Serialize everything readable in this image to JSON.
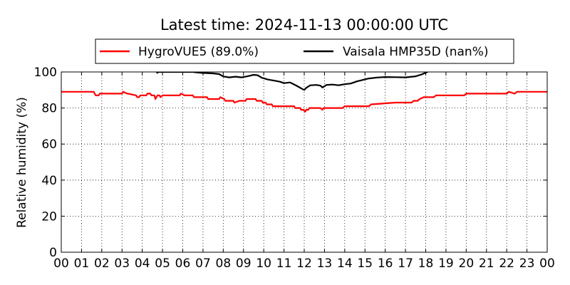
{
  "chart_data": {
    "type": "line",
    "title": "Latest time: 2024-11-13 00:00:00 UTC",
    "xlabel": "",
    "ylabel": "Relative humidity (%)",
    "xlim": [
      0,
      24
    ],
    "ylim": [
      0,
      100
    ],
    "yticks": [
      0,
      20,
      40,
      60,
      80,
      100
    ],
    "xtick_labels": [
      "00",
      "01",
      "02",
      "03",
      "04",
      "05",
      "06",
      "07",
      "08",
      "09",
      "10",
      "11",
      "12",
      "13",
      "14",
      "15",
      "16",
      "17",
      "18",
      "19",
      "20",
      "21",
      "22",
      "23",
      "00"
    ],
    "grid": true,
    "legend_position": "top-center",
    "series": [
      {
        "name": "HygroVUE5 (89.0%)",
        "color": "#ff0000",
        "x": [
          0,
          1.6,
          1.7,
          1.85,
          1.9,
          2.5,
          3.0,
          3.05,
          3.25,
          3.3,
          3.7,
          3.75,
          3.85,
          3.9,
          4.2,
          4.25,
          4.4,
          4.45,
          4.6,
          4.65,
          4.75,
          4.85,
          4.9,
          5.0,
          5.5,
          5.85,
          5.9,
          6.1,
          6.15,
          6.5,
          6.55,
          6.8,
          6.85,
          7.2,
          7.25,
          7.8,
          7.85,
          8.05,
          8.1,
          8.5,
          8.55,
          8.8,
          8.85,
          9.1,
          9.15,
          9.6,
          9.65,
          9.9,
          9.95,
          10.1,
          10.15,
          10.4,
          10.45,
          10.7,
          10.75,
          11.0,
          11.1,
          11.5,
          11.55,
          11.8,
          11.85,
          11.95,
          12.05,
          12.1,
          12.2,
          12.25,
          12.6,
          12.8,
          12.9,
          12.95,
          13.0,
          13.4,
          13.5,
          13.9,
          14.0,
          14.8,
          14.9,
          15.2,
          15.3,
          16.5,
          17.0,
          17.3,
          17.4,
          17.6,
          17.7,
          17.9,
          18.4,
          18.5,
          19.3,
          19.4,
          19.9,
          20.0,
          21.5,
          22.0,
          22.1,
          22.4,
          22.5,
          23.0,
          23.5,
          24
        ],
        "y": [
          89,
          89,
          87,
          87,
          88,
          88,
          88,
          89,
          88,
          88,
          87,
          86,
          86,
          87,
          87,
          88,
          88,
          87,
          87,
          85,
          87,
          87,
          86,
          87,
          87,
          87,
          88,
          87,
          87,
          87,
          86,
          86,
          86,
          86,
          85,
          85,
          86,
          85,
          84,
          84,
          83,
          84,
          84,
          84,
          85,
          85,
          84,
          84,
          83,
          83,
          82,
          82,
          81,
          81,
          81,
          81,
          81,
          81,
          80,
          80,
          79,
          79,
          78,
          79,
          79,
          80,
          80,
          80,
          79,
          80,
          80,
          80,
          80,
          80,
          81,
          81,
          81,
          81,
          82,
          83,
          83,
          83,
          84,
          84,
          85,
          86,
          86,
          87,
          87,
          87,
          87,
          88,
          88,
          88,
          89,
          88,
          89,
          89,
          89,
          89
        ],
        "values_display": "HygroVUE5 (89.0%)"
      },
      {
        "name": "Vaisala HMP35D (nan%)",
        "color": "#000000",
        "x": [
          4.7,
          4.75,
          4.8,
          6.5,
          6.9,
          7.5,
          7.8,
          8.0,
          8.3,
          8.6,
          8.9,
          9.2,
          9.5,
          9.7,
          9.9,
          10.2,
          10.5,
          10.8,
          11.0,
          11.3,
          11.6,
          11.9,
          12.0,
          12.1,
          12.3,
          12.6,
          12.8,
          12.9,
          13.1,
          13.4,
          13.7,
          14.0,
          14.3,
          14.6,
          14.9,
          15.2,
          15.6,
          16.0,
          16.5,
          17.0,
          17.5,
          17.8,
          18.0,
          18.1
        ],
        "y": [
          100,
          99.5,
          100,
          100,
          99.5,
          99.2,
          98.8,
          97.5,
          97.0,
          97.4,
          97.0,
          97.6,
          98.4,
          98.2,
          96.8,
          95.8,
          95.2,
          94.6,
          93.8,
          94.2,
          92.5,
          90.6,
          90.0,
          91.2,
          92.6,
          92.8,
          92.4,
          91.4,
          92.8,
          93.0,
          92.6,
          93.2,
          93.6,
          94.8,
          95.6,
          96.4,
          96.9,
          97.2,
          97.1,
          97.0,
          97.6,
          98.6,
          99.6,
          100
        ]
      }
    ]
  }
}
